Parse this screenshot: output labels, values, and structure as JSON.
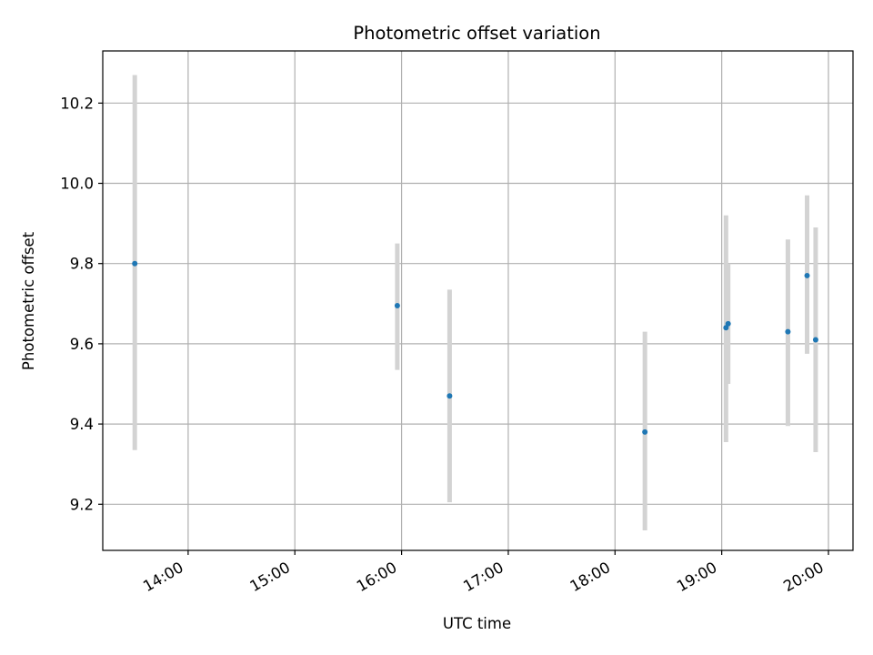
{
  "chart_data": {
    "type": "scatter",
    "title": "Photometric offset variation",
    "xlabel": "UTC time",
    "ylabel": "Photometric offset",
    "x_unit": "hours (UTC)",
    "xlim": [
      13.2,
      20.23
    ],
    "ylim": [
      9.085,
      10.33
    ],
    "grid": true,
    "x_ticks": [
      {
        "value": 14,
        "label": "14:00"
      },
      {
        "value": 15,
        "label": "15:00"
      },
      {
        "value": 16,
        "label": "16:00"
      },
      {
        "value": 17,
        "label": "17:00"
      },
      {
        "value": 18,
        "label": "18:00"
      },
      {
        "value": 19,
        "label": "19:00"
      },
      {
        "value": 20,
        "label": "20:00"
      }
    ],
    "y_ticks": [
      {
        "value": 9.2,
        "label": "9.2"
      },
      {
        "value": 9.4,
        "label": "9.4"
      },
      {
        "value": 9.6,
        "label": "9.6"
      },
      {
        "value": 9.8,
        "label": "9.8"
      },
      {
        "value": 10.0,
        "label": "10.0"
      },
      {
        "value": 10.2,
        "label": "10.2"
      }
    ],
    "series": [
      {
        "name": "offset",
        "color": "#1f77b4",
        "errorbar_color": "#d3d3d3",
        "points": [
          {
            "x": 13.5,
            "y": 9.8,
            "err_low": 9.335,
            "err_high": 10.27
          },
          {
            "x": 15.96,
            "y": 9.695,
            "err_low": 9.535,
            "err_high": 9.85
          },
          {
            "x": 16.45,
            "y": 9.47,
            "err_low": 9.205,
            "err_high": 9.735
          },
          {
            "x": 18.28,
            "y": 9.38,
            "err_low": 9.135,
            "err_high": 9.63
          },
          {
            "x": 19.04,
            "y": 9.64,
            "err_low": 9.355,
            "err_high": 9.92
          },
          {
            "x": 19.06,
            "y": 9.65,
            "err_low": 9.5,
            "err_high": 9.8
          },
          {
            "x": 19.62,
            "y": 9.63,
            "err_low": 9.395,
            "err_high": 9.86
          },
          {
            "x": 19.8,
            "y": 9.77,
            "err_low": 9.575,
            "err_high": 9.97
          },
          {
            "x": 19.88,
            "y": 9.61,
            "err_low": 9.33,
            "err_high": 9.89
          }
        ]
      }
    ]
  }
}
